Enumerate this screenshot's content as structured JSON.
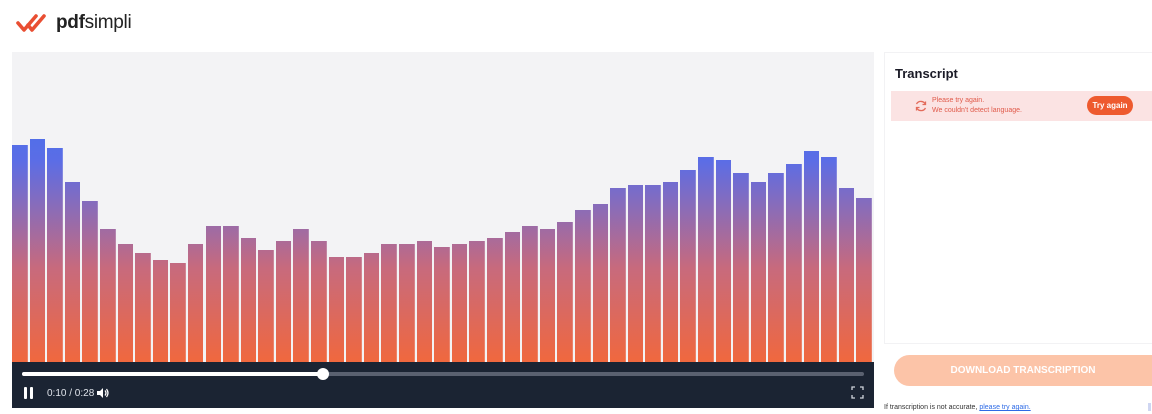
{
  "logo": {
    "bold": "pdf",
    "regular": "simpli",
    "icon": "double-check-logo-icon",
    "color": "#e94e32"
  },
  "player": {
    "progress": 0.357,
    "elapsed": "0:10",
    "duration": "0:28",
    "time_display": "0:10 / 0:28",
    "icons": {
      "play_state": "pause-icon",
      "volume": "volume-icon",
      "fullscreen": "fullscreen-icon"
    },
    "colors": {
      "bar_top": "#2f73f0",
      "bar_bottom": "#f0683e",
      "controls_bg": "#1b2433"
    },
    "waveform_levels": [
      0.7,
      0.72,
      0.69,
      0.58,
      0.52,
      0.43,
      0.38,
      0.35,
      0.33,
      0.32,
      0.38,
      0.44,
      0.44,
      0.4,
      0.36,
      0.39,
      0.43,
      0.39,
      0.34,
      0.34,
      0.35,
      0.38,
      0.38,
      0.39,
      0.37,
      0.38,
      0.39,
      0.4,
      0.42,
      0.44,
      0.43,
      0.45,
      0.49,
      0.51,
      0.56,
      0.57,
      0.57,
      0.58,
      0.62,
      0.66,
      0.65,
      0.61,
      0.58,
      0.61,
      0.64,
      0.68,
      0.66,
      0.56,
      0.53
    ]
  },
  "transcript": {
    "title": "Transcript",
    "error": {
      "line1": "Please try again.",
      "line2": "We couldn't detect language.",
      "icon": "refresh-icon",
      "button": "Try again"
    },
    "download_label": "DOWNLOAD TRANSCRIPTION",
    "note_text": "If transcription is not accurate, ",
    "note_link": "please try again."
  }
}
